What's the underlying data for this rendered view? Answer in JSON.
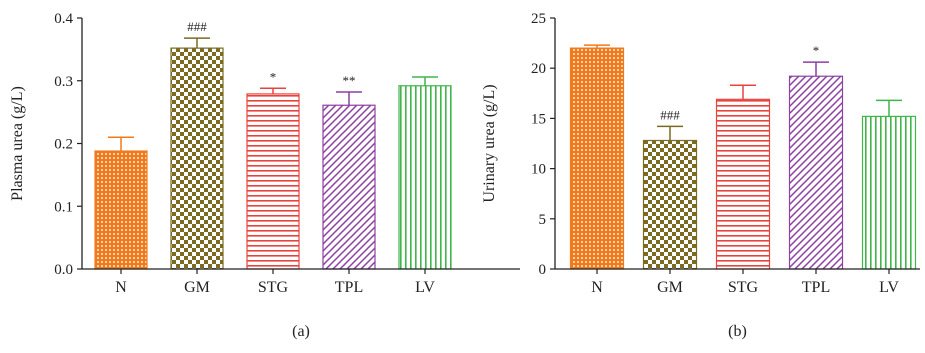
{
  "chart_data": [
    {
      "type": "bar",
      "panel_label": "(a)",
      "ylabel": "Plasma urea (g/L)",
      "categories": [
        "N",
        "GM",
        "STG",
        "TPL",
        "LV"
      ],
      "values": [
        0.188,
        0.352,
        0.279,
        0.261,
        0.292
      ],
      "errors": [
        0.022,
        0.016,
        0.009,
        0.021,
        0.014
      ],
      "significance": [
        "",
        "###",
        "*",
        "**",
        ""
      ],
      "ylim": [
        0,
        0.4
      ],
      "yticks": [
        "0.0",
        "0.1",
        "0.2",
        "0.3",
        "0.4"
      ],
      "ytick_values": [
        0,
        0.1,
        0.2,
        0.3,
        0.4
      ],
      "grid": false,
      "bar_colors": [
        "#f07a1e",
        "#7a6a22",
        "#e8423c",
        "#8e3fa3",
        "#3fb54a"
      ],
      "bar_patterns": [
        "dots",
        "checker",
        "hlines",
        "diagonal",
        "vlines"
      ]
    },
    {
      "type": "bar",
      "panel_label": "(b)",
      "ylabel": "Urinary urea (g/L)",
      "categories": [
        "N",
        "GM",
        "STG",
        "TPL",
        "LV"
      ],
      "values": [
        22.0,
        12.8,
        16.9,
        19.2,
        15.2
      ],
      "errors": [
        0.3,
        1.4,
        1.4,
        1.4,
        1.6
      ],
      "significance": [
        "",
        "###",
        "",
        "*",
        ""
      ],
      "ylim": [
        0,
        25
      ],
      "yticks": [
        "0",
        "5",
        "10",
        "15",
        "20",
        "25"
      ],
      "ytick_values": [
        0,
        5,
        10,
        15,
        20,
        25
      ],
      "grid": false,
      "bar_colors": [
        "#f07a1e",
        "#7a6a22",
        "#e8423c",
        "#8e3fa3",
        "#3fb54a"
      ],
      "bar_patterns": [
        "dots",
        "checker",
        "hlines",
        "diagonal",
        "vlines"
      ]
    }
  ]
}
